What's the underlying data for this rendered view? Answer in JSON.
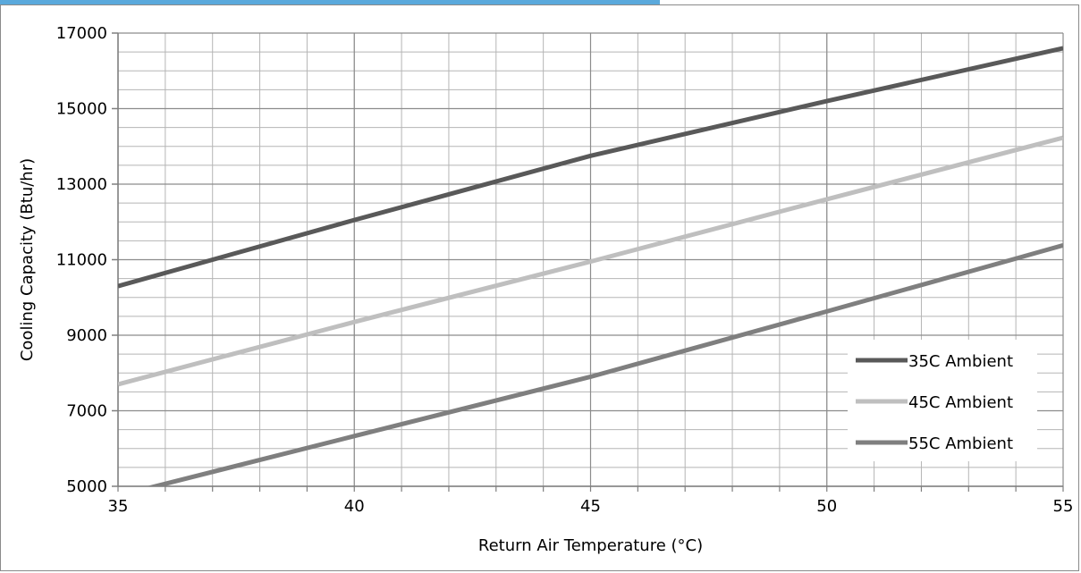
{
  "chart_data": {
    "type": "line",
    "title": "",
    "xlabel": "Return Air Temperature  (°C)",
    "ylabel": "Cooling Capacity (Btu/hr)",
    "xlim": [
      35,
      55
    ],
    "ylim": [
      5000,
      17000
    ],
    "x_ticks": [
      "35",
      "40",
      "45",
      "50",
      "55"
    ],
    "y_ticks": [
      "5000",
      "7000",
      "9000",
      "11000",
      "13000",
      "15000",
      "17000"
    ],
    "grid": true,
    "legend_position": "right",
    "series": [
      {
        "name": "35C Ambient",
        "color": "#595959",
        "points": [
          [
            35,
            10300
          ],
          [
            40,
            12050
          ],
          [
            45,
            13750
          ],
          [
            50,
            15200
          ],
          [
            55,
            16600
          ]
        ]
      },
      {
        "name": "45C Ambient",
        "color": "#bfbfbf",
        "points": [
          [
            35,
            7700
          ],
          [
            40,
            9350
          ],
          [
            45,
            10950
          ],
          [
            50,
            12600
          ],
          [
            55,
            14230
          ]
        ]
      },
      {
        "name": "55C Ambient",
        "color": "#7f7f7f",
        "points": [
          [
            35,
            4750
          ],
          [
            40,
            6330
          ],
          [
            45,
            7900
          ],
          [
            50,
            9630
          ],
          [
            55,
            11380
          ]
        ]
      }
    ]
  }
}
